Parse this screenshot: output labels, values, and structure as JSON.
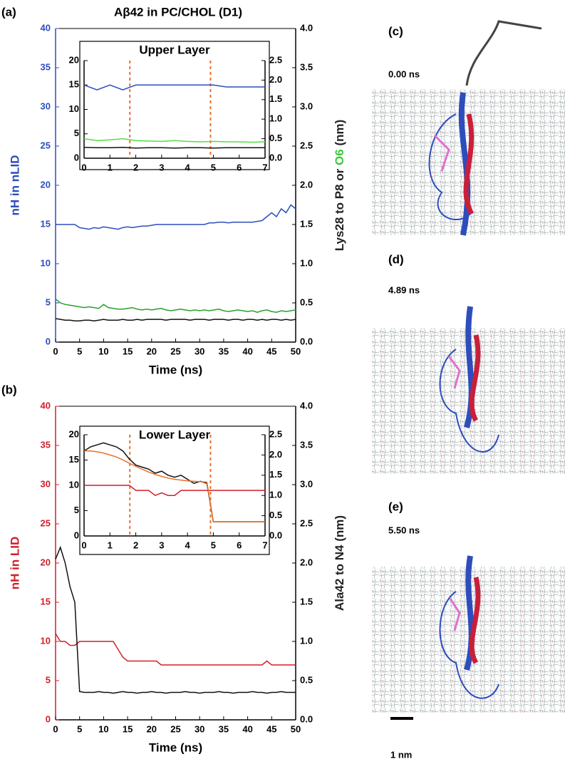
{
  "title": "Aβ42 in PC/CHOL (D1)",
  "chart_data": [
    {
      "type": "line",
      "panel_label": "(a)",
      "ylabel": "nH in nLID",
      "y2label_parts": [
        "Lys28 to P8 or ",
        "O6",
        " (nm)"
      ],
      "y2label_colors": [
        "#222222",
        "#3cc83c",
        "#222222"
      ],
      "xlabel": "Time (ns)",
      "axis_color": "#2e4dbd",
      "xlim": [
        0,
        50
      ],
      "xticks": [
        0,
        5,
        10,
        15,
        20,
        25,
        30,
        35,
        40,
        45,
        50
      ],
      "ylim": [
        0,
        40
      ],
      "yticks": [
        0,
        5,
        10,
        15,
        20,
        25,
        30,
        35,
        40
      ],
      "y2lim": [
        0,
        4
      ],
      "y2ticks": [
        {
          "value": 0,
          "label": "0.0"
        },
        0.5,
        {
          "value": 1,
          "label": "1.0"
        },
        1.5,
        {
          "value": 2,
          "label": "2.0"
        },
        2.5,
        {
          "value": 3,
          "label": "3.0"
        },
        3.5,
        {
          "value": 4,
          "label": "4.0"
        }
      ],
      "x": [
        0,
        1,
        2,
        3,
        4,
        5,
        6,
        7,
        8,
        9,
        10,
        11,
        12,
        13,
        14,
        15,
        16,
        17,
        18,
        19,
        20,
        21,
        22,
        23,
        24,
        25,
        26,
        27,
        28,
        29,
        30,
        31,
        32,
        33,
        34,
        35,
        36,
        37,
        38,
        39,
        40,
        41,
        42,
        43,
        44,
        45,
        46,
        47,
        48,
        49,
        50
      ],
      "series": [
        {
          "color": "#2e4dbd",
          "axis": "y",
          "values": [
            15,
            15,
            15,
            15,
            15,
            14.6,
            14.5,
            14.4,
            14.6,
            14.5,
            14.7,
            14.6,
            14.5,
            14.4,
            14.6,
            14.7,
            14.6,
            14.7,
            14.8,
            14.8,
            14.9,
            15,
            15,
            15,
            15,
            15,
            15,
            15,
            15,
            15,
            15,
            15,
            15.2,
            15.2,
            15.3,
            15.3,
            15.2,
            15.3,
            15.3,
            15.3,
            15.3,
            15.3,
            15.4,
            15.5,
            16,
            16.5,
            16,
            17,
            16.5,
            17.5,
            17
          ]
        },
        {
          "color": "#2aa02a",
          "axis": "y2",
          "values": [
            0.55,
            0.5,
            0.48,
            0.47,
            0.46,
            0.45,
            0.44,
            0.45,
            0.44,
            0.43,
            0.48,
            0.44,
            0.43,
            0.42,
            0.42,
            0.43,
            0.44,
            0.42,
            0.41,
            0.42,
            0.41,
            0.42,
            0.43,
            0.41,
            0.4,
            0.41,
            0.42,
            0.41,
            0.4,
            0.41,
            0.4,
            0.41,
            0.4,
            0.41,
            0.42,
            0.4,
            0.39,
            0.4,
            0.41,
            0.4,
            0.39,
            0.4,
            0.38,
            0.4,
            0.41,
            0.39,
            0.38,
            0.4,
            0.39,
            0.4,
            0.41
          ]
        },
        {
          "color": "#111111",
          "axis": "y2",
          "values": [
            0.3,
            0.29,
            0.28,
            0.28,
            0.27,
            0.27,
            0.28,
            0.28,
            0.27,
            0.28,
            0.29,
            0.28,
            0.28,
            0.28,
            0.29,
            0.28,
            0.28,
            0.29,
            0.28,
            0.29,
            0.29,
            0.29,
            0.29,
            0.28,
            0.29,
            0.29,
            0.29,
            0.29,
            0.28,
            0.29,
            0.29,
            0.29,
            0.28,
            0.29,
            0.29,
            0.29,
            0.28,
            0.29,
            0.29,
            0.28,
            0.29,
            0.29,
            0.28,
            0.29,
            0.28,
            0.29,
            0.29,
            0.28,
            0.29,
            0.28,
            0.29
          ]
        }
      ]
    },
    {
      "type": "line",
      "title": "Upper Layer",
      "axis_color": "#000000",
      "xlim": [
        0,
        7
      ],
      "xticks": [
        0,
        1,
        2,
        3,
        4,
        5,
        6,
        7
      ],
      "ylim": [
        0,
        20
      ],
      "yticks": [
        0,
        5,
        10,
        15,
        20
      ],
      "y2lim": [
        0,
        2.5
      ],
      "y2ticks": [
        {
          "value": 0,
          "label": "0.0"
        },
        0.5,
        {
          "value": 1,
          "label": "1.0"
        },
        1.5,
        {
          "value": 2,
          "label": "2.0"
        },
        2.5
      ],
      "vlines": [
        1.77,
        4.89
      ],
      "vline_color": "#e8702a",
      "x": [
        0,
        0.5,
        1,
        1.5,
        2,
        2.5,
        3,
        3.5,
        4,
        4.5,
        5,
        5.5,
        6,
        6.5,
        7
      ],
      "series": [
        {
          "color": "#2e4dbd",
          "axis": "y",
          "values": [
            15,
            14,
            15,
            14,
            15,
            15,
            15,
            15,
            15,
            15,
            15,
            14.6,
            14.6,
            14.6,
            14.6
          ]
        },
        {
          "color": "#55dd44",
          "axis": "y2",
          "values": [
            0.5,
            0.45,
            0.47,
            0.5,
            0.45,
            0.44,
            0.43,
            0.45,
            0.43,
            0.42,
            0.43,
            0.42,
            0.42,
            0.41,
            0.42
          ]
        },
        {
          "color": "#111111",
          "axis": "y2",
          "values": [
            0.28,
            0.27,
            0.27,
            0.28,
            0.26,
            0.27,
            0.27,
            0.26,
            0.27,
            0.27,
            0.26,
            0.27,
            0.27,
            0.27,
            0.27
          ]
        }
      ]
    },
    {
      "type": "line",
      "panel_label": "(b)",
      "ylabel": "nH in LID",
      "y2label_parts": [
        "Ala42 to N4 (nm)"
      ],
      "y2label_colors": [
        "#222222"
      ],
      "xlabel": "Time (ns)",
      "axis_color": "#d11f2a",
      "xlim": [
        0,
        50
      ],
      "xticks": [
        0,
        5,
        10,
        15,
        20,
        25,
        30,
        35,
        40,
        45,
        50
      ],
      "ylim": [
        0,
        40
      ],
      "yticks": [
        0,
        5,
        10,
        15,
        20,
        25,
        30,
        35,
        40
      ],
      "y2lim": [
        0,
        4
      ],
      "y2ticks": [
        {
          "value": 0,
          "label": "0.0"
        },
        0.5,
        {
          "value": 1,
          "label": "1.0"
        },
        1.5,
        {
          "value": 2,
          "label": "2.0"
        },
        2.5,
        {
          "value": 3,
          "label": "3.0"
        },
        3.5,
        {
          "value": 4,
          "label": "4.0"
        }
      ],
      "x": [
        0,
        1,
        2,
        3,
        4,
        5,
        6,
        7,
        8,
        9,
        10,
        11,
        12,
        13,
        14,
        15,
        16,
        17,
        18,
        19,
        20,
        21,
        22,
        23,
        24,
        25,
        26,
        27,
        28,
        29,
        30,
        31,
        32,
        33,
        34,
        35,
        36,
        37,
        38,
        39,
        40,
        41,
        42,
        43,
        44,
        45,
        46,
        47,
        48,
        49,
        50
      ],
      "series": [
        {
          "color": "#d11f2a",
          "axis": "y",
          "values": [
            11,
            10,
            10,
            9.5,
            9.5,
            10,
            10,
            10,
            10,
            10,
            10,
            10,
            10,
            9,
            8,
            7.5,
            7.5,
            7.5,
            7.5,
            7.5,
            7.5,
            7.5,
            7,
            7,
            7,
            7,
            7,
            7,
            7,
            7,
            7,
            7,
            7,
            7,
            7,
            7,
            7,
            7,
            7,
            7,
            7,
            7,
            7,
            7,
            7.5,
            7,
            7,
            7,
            7,
            7,
            7
          ]
        },
        {
          "color": "#111111",
          "axis": "y2",
          "values": [
            2.05,
            2.2,
            2.0,
            1.7,
            1.5,
            0.36,
            0.35,
            0.35,
            0.35,
            0.36,
            0.35,
            0.35,
            0.34,
            0.35,
            0.36,
            0.35,
            0.35,
            0.34,
            0.35,
            0.35,
            0.36,
            0.35,
            0.35,
            0.34,
            0.35,
            0.35,
            0.35,
            0.36,
            0.35,
            0.35,
            0.34,
            0.35,
            0.35,
            0.35,
            0.36,
            0.35,
            0.35,
            0.34,
            0.35,
            0.35,
            0.35,
            0.36,
            0.35,
            0.35,
            0.34,
            0.35,
            0.35,
            0.36,
            0.35,
            0.35,
            0.35
          ]
        }
      ]
    },
    {
      "type": "line",
      "title": "Lower Layer",
      "axis_color": "#000000",
      "xlim": [
        0,
        7
      ],
      "xticks": [
        0,
        1,
        2,
        3,
        4,
        5,
        6,
        7
      ],
      "ylim": [
        0,
        20
      ],
      "yticks": [
        0,
        5,
        10,
        15,
        20
      ],
      "y2lim": [
        0,
        2.5
      ],
      "y2ticks": [
        {
          "value": 0,
          "label": "0.0"
        },
        0.5,
        {
          "value": 1,
          "label": "1.0"
        },
        1.5,
        {
          "value": 2,
          "label": "2.0"
        },
        2.5
      ],
      "vlines": [
        1.77,
        4.89
      ],
      "vline_color": "#e8702a",
      "x": [
        0,
        0.25,
        0.5,
        0.75,
        1,
        1.25,
        1.5,
        1.75,
        2,
        2.25,
        2.5,
        2.75,
        3,
        3.25,
        3.5,
        3.75,
        4,
        4.25,
        4.5,
        4.75,
        5,
        5.25,
        5.5,
        5.75,
        6,
        6.25,
        6.5,
        6.75,
        7
      ],
      "series": [
        {
          "color": "#d11f2a",
          "axis": "y",
          "values": [
            10,
            10,
            10,
            10,
            10,
            10,
            10,
            10,
            9,
            9,
            9,
            8,
            8.5,
            8,
            8,
            9,
            9,
            9,
            9,
            9,
            9,
            9,
            9,
            9,
            9,
            9,
            9,
            9,
            9
          ]
        },
        {
          "color": "#111111",
          "axis": "y2",
          "values": [
            2.1,
            2.2,
            2.25,
            2.3,
            2.25,
            2.2,
            2.1,
            1.9,
            1.75,
            1.7,
            1.65,
            1.55,
            1.6,
            1.5,
            1.45,
            1.5,
            1.4,
            1.3,
            1.35,
            1.3,
            0.35,
            0.35,
            0.35,
            0.35,
            0.35,
            0.35,
            0.35,
            0.35,
            0.35
          ]
        },
        {
          "color": "#e8702a",
          "axis": "y2",
          "values": [
            2.1,
            2.1,
            2.08,
            2.05,
            2.0,
            1.95,
            1.88,
            1.8,
            1.72,
            1.65,
            1.58,
            1.52,
            1.47,
            1.43,
            1.4,
            1.38,
            1.36,
            1.35,
            1.34,
            1.33,
            0.35,
            0.35,
            0.35,
            0.35,
            0.35,
            0.35,
            0.35,
            0.35,
            0.35
          ]
        }
      ]
    }
  ],
  "snapshots": [
    {
      "label": "(c)",
      "time": "0.00 ns"
    },
    {
      "label": "(d)",
      "time": "4.89 ns"
    },
    {
      "label": "(e)",
      "time": "5.50 ns"
    }
  ],
  "scale_bar": "1 nm"
}
